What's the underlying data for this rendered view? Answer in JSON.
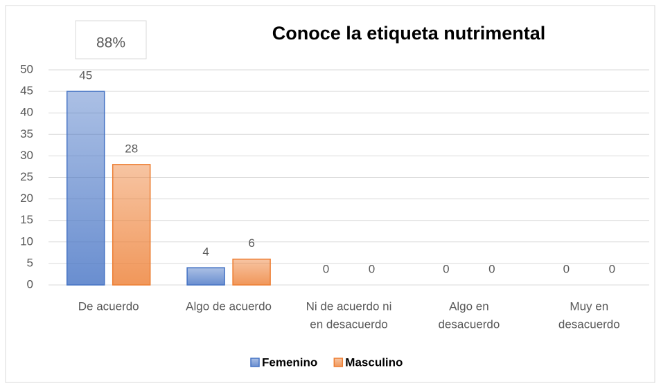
{
  "chart_data": {
    "type": "bar",
    "title": "Conoce la etiqueta nutrimental",
    "annotation": "88%",
    "categories": [
      [
        "De acuerdo"
      ],
      [
        "Algo de acuerdo"
      ],
      [
        "Ni de acuerdo  ni",
        "en desacuerdo"
      ],
      [
        "Algo en",
        "desacuerdo"
      ],
      [
        "Muy en",
        "desacuerdo"
      ]
    ],
    "series": [
      {
        "name": "Femenino",
        "color": "#4472c4",
        "values": [
          45,
          4,
          0,
          0,
          0
        ]
      },
      {
        "name": "Masculino",
        "color": "#ed7d31",
        "values": [
          28,
          6,
          0,
          0,
          0
        ]
      }
    ],
    "ylim": [
      0,
      50
    ],
    "yticks": [
      0,
      5,
      10,
      15,
      20,
      25,
      30,
      35,
      40,
      45,
      50
    ],
    "grid": true,
    "legend": "bottom"
  }
}
